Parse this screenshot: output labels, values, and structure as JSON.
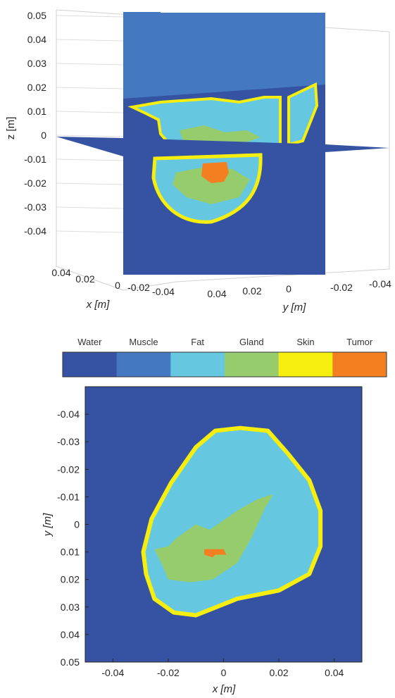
{
  "colors": {
    "water": "#3653A3",
    "muscle": "#4479C2",
    "fat": "#66C8E0",
    "gland": "#97CC6D",
    "skin": "#F5EE0E",
    "tumor": "#F47F20"
  },
  "legend": {
    "labels": [
      "Water",
      "Muscle",
      "Fat",
      "Gland",
      "Skin",
      "Tumor"
    ]
  },
  "chart_data": [
    {
      "type": "slice-volume",
      "xlabel": "x [m]",
      "ylabel": "y [m]",
      "zlabel": "z [m]",
      "xlim": [
        -0.05,
        0.05
      ],
      "ylim": [
        -0.05,
        0.05
      ],
      "zlim": [
        -0.05,
        0.05
      ],
      "z_ticks": [
        0.05,
        0.04,
        0.03,
        0.02,
        0.01,
        0,
        -0.01,
        -0.02,
        -0.03,
        -0.04
      ],
      "z_tick_labels": [
        "0.05",
        "0.04",
        "0.03",
        "0.02",
        "0.01",
        "0",
        "-0.01",
        "-0.02",
        "-0.03",
        "-0.04"
      ],
      "x_tick_labels": [
        "0.04",
        "0.02",
        "0",
        "-0.02",
        "-0.04"
      ],
      "y_tick_labels": [
        "0.04",
        "0.02",
        "0",
        "-0.02",
        "-0.04"
      ],
      "slices": [
        "x = 0",
        "y = 0",
        "z = 0"
      ],
      "grid": true
    },
    {
      "type": "heatmap",
      "xlabel": "x [m]",
      "ylabel": "y [m]",
      "xlim": [
        -0.05,
        0.05
      ],
      "ylim": [
        -0.05,
        0.05
      ],
      "y_reversed": true,
      "x_ticks": [
        -0.04,
        -0.02,
        0,
        0.02,
        0.04
      ],
      "x_tick_labels": [
        "-0.04",
        "-0.02",
        "0",
        "0.02",
        "0.04"
      ],
      "y_ticks": [
        -0.04,
        -0.03,
        -0.02,
        -0.01,
        0,
        0.01,
        0.02,
        0.03,
        0.04,
        0.05
      ],
      "y_tick_labels": [
        "-0.04",
        "-0.03",
        "-0.02",
        "-0.01",
        "0",
        "0.01",
        "0.02",
        "0.03",
        "0.04",
        "0.05"
      ],
      "tissue_outline": [
        [
          0.006,
          -0.035
        ],
        [
          0.016,
          -0.034
        ],
        [
          0.023,
          -0.026
        ],
        [
          0.031,
          -0.016
        ],
        [
          0.035,
          -0.005
        ],
        [
          0.035,
          0.008
        ],
        [
          0.031,
          0.018
        ],
        [
          0.02,
          0.024
        ],
        [
          0.005,
          0.027
        ],
        [
          -0.01,
          0.033
        ],
        [
          -0.018,
          0.032
        ],
        [
          -0.025,
          0.027
        ],
        [
          -0.028,
          0.018
        ],
        [
          -0.029,
          0.01
        ],
        [
          -0.026,
          -0.002
        ],
        [
          -0.019,
          -0.015
        ],
        [
          -0.01,
          -0.028
        ],
        [
          -0.003,
          -0.034
        ]
      ],
      "gland_region": [
        [
          -0.017,
          0.005
        ],
        [
          -0.01,
          0.0
        ],
        [
          -0.005,
          0.002
        ],
        [
          0.005,
          -0.005
        ],
        [
          0.012,
          -0.009
        ],
        [
          0.018,
          -0.011
        ],
        [
          0.015,
          -0.006
        ],
        [
          0.01,
          0.005
        ],
        [
          0.005,
          0.014
        ],
        [
          -0.004,
          0.02
        ],
        [
          -0.012,
          0.021
        ],
        [
          -0.02,
          0.02
        ],
        [
          -0.022,
          0.015
        ],
        [
          -0.025,
          0.009
        ],
        [
          -0.02,
          0.008
        ]
      ],
      "tumor_region": [
        [
          -0.007,
          0.009
        ],
        [
          0.0,
          0.009
        ],
        [
          0.001,
          0.011
        ],
        [
          -0.003,
          0.011
        ],
        [
          -0.004,
          0.012
        ],
        [
          -0.007,
          0.011
        ]
      ],
      "grid": false
    }
  ]
}
